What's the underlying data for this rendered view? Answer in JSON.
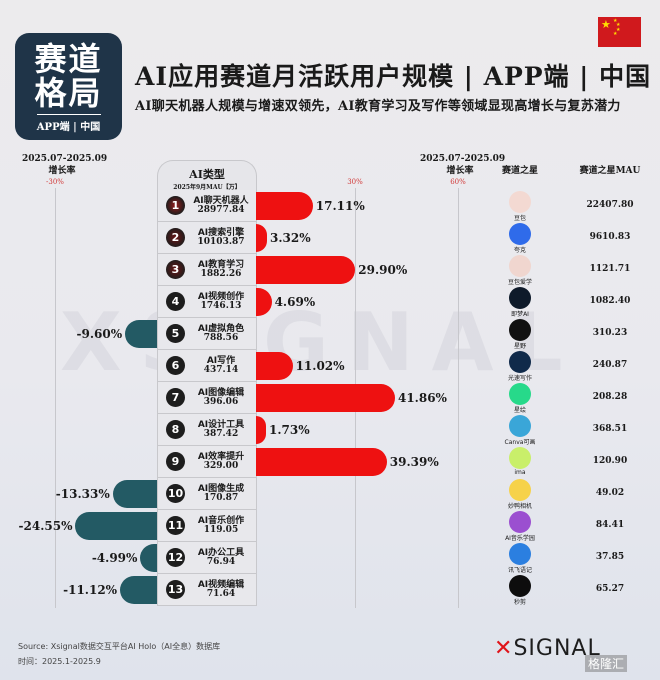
{
  "logo": {
    "line1": "赛道",
    "line2": "格局",
    "sub": "APP端 | 中国"
  },
  "title": "AI应用赛道月活跃用户规模 | APP端 | 中国",
  "subtitle": "AI聊天机器人规模与增速双领先，AI教育学习及写作等领域显现高增长与复苏潜力",
  "headers": {
    "left_period": "2025.07-2025.09",
    "left_growth": "增长率",
    "right_period": "2025.07-2025.09",
    "right_growth": "增长率",
    "star": "赛道之星",
    "star_mau": "赛道之星MAU",
    "table_title": "AI类型",
    "table_sub": "2025年9月MAU【万】"
  },
  "ticks": {
    "neg30": "-30%",
    "pos30": "30%",
    "pos60": "60%"
  },
  "colors": {
    "positive": "#ee1111",
    "negative": "#235a64",
    "logo_bg": "#1f3448"
  },
  "chart_data": {
    "type": "bar",
    "orientation": "horizontal-diverging",
    "title": "AI应用赛道月活跃用户规模 | APP端 | 中国",
    "xlabel": "2025.07-2025.09 增长率",
    "xlim": [
      -30,
      60
    ],
    "grid": true,
    "categories": [
      "AI聊天机器人",
      "AI搜索引擎",
      "AI教育学习",
      "AI视频创作",
      "AI虚拟角色",
      "AI写作",
      "AI图像编辑",
      "AI设计工具",
      "AI效率提升",
      "AI图像生成",
      "AI音乐创作",
      "AI办公工具",
      "AI视频编辑"
    ],
    "series": [
      {
        "name": "2025年9月MAU【万】",
        "values": [
          28977.84,
          10103.87,
          1882.26,
          1746.13,
          788.56,
          437.14,
          396.06,
          387.42,
          329.0,
          170.87,
          119.05,
          76.94,
          71.64
        ]
      },
      {
        "name": "增长率(%)",
        "values": [
          17.11,
          3.32,
          29.9,
          4.69,
          -9.6,
          11.02,
          41.86,
          1.73,
          39.39,
          -13.33,
          -24.55,
          -4.99,
          -11.12
        ]
      },
      {
        "name": "赛道之星MAU",
        "values": [
          22407.8,
          9610.83,
          1121.71,
          1082.4,
          310.23,
          240.87,
          208.28,
          368.51,
          120.9,
          49.02,
          84.41,
          37.85,
          65.27
        ]
      }
    ]
  },
  "rows": [
    {
      "rank": "1",
      "name": "AI聊天机器人",
      "mau": "28977.84",
      "growth": 17.11,
      "growth_label": "17.11%",
      "star": "豆包",
      "star_mau": "22407.80",
      "icon_color": "#f3d9d2"
    },
    {
      "rank": "2",
      "name": "AI搜索引擎",
      "mau": "10103.87",
      "growth": 3.32,
      "growth_label": "3.32%",
      "star": "夸克",
      "star_mau": "9610.83",
      "icon_color": "#2f6bea"
    },
    {
      "rank": "3",
      "name": "AI教育学习",
      "mau": "1882.26",
      "growth": 29.9,
      "growth_label": "29.90%",
      "star": "豆包爱学",
      "star_mau": "1121.71",
      "icon_color": "#f0d6cf"
    },
    {
      "rank": "4",
      "name": "AI视频创作",
      "mau": "1746.13",
      "growth": 4.69,
      "growth_label": "4.69%",
      "star": "即梦AI",
      "star_mau": "1082.40",
      "icon_color": "#0e1a2a"
    },
    {
      "rank": "5",
      "name": "AI虚拟角色",
      "mau": "788.56",
      "growth": -9.6,
      "growth_label": "-9.60%",
      "star": "星野",
      "star_mau": "310.23",
      "icon_color": "#111111"
    },
    {
      "rank": "6",
      "name": "AI写作",
      "mau": "437.14",
      "growth": 11.02,
      "growth_label": "11.02%",
      "star": "光速写作",
      "star_mau": "240.87",
      "icon_color": "#102a4a"
    },
    {
      "rank": "7",
      "name": "AI图像编辑",
      "mau": "396.06",
      "growth": 41.86,
      "growth_label": "41.86%",
      "star": "星绘",
      "star_mau": "208.28",
      "icon_color": "#27d98a"
    },
    {
      "rank": "8",
      "name": "AI设计工具",
      "mau": "387.42",
      "growth": 1.73,
      "growth_label": "1.73%",
      "star": "Canva可画",
      "star_mau": "368.51",
      "icon_color": "#3aa6d8"
    },
    {
      "rank": "9",
      "name": "AI效率提升",
      "mau": "329.00",
      "growth": 39.39,
      "growth_label": "39.39%",
      "star": "ima",
      "star_mau": "120.90",
      "icon_color": "#c9ef6a"
    },
    {
      "rank": "10",
      "name": "AI图像生成",
      "mau": "170.87",
      "growth": -13.33,
      "growth_label": "-13.33%",
      "star": "妙鸭相机",
      "star_mau": "49.02",
      "icon_color": "#f6d24a"
    },
    {
      "rank": "11",
      "name": "AI音乐创作",
      "mau": "119.05",
      "growth": -24.55,
      "growth_label": "-24.55%",
      "star": "AI音乐学园",
      "star_mau": "84.41",
      "icon_color": "#9b4fd0"
    },
    {
      "rank": "12",
      "name": "AI办公工具",
      "mau": "76.94",
      "growth": -4.99,
      "growth_label": "-4.99%",
      "star": "讯飞语记",
      "star_mau": "37.85",
      "icon_color": "#2b7fe0"
    },
    {
      "rank": "13",
      "name": "AI视频编辑",
      "mau": "71.64",
      "growth": -11.12,
      "growth_label": "-11.12%",
      "star": "秒剪",
      "star_mau": "65.27",
      "icon_color": "#0d0d0d"
    }
  ],
  "footer": {
    "source": "Source:  Xsignal数据交互平台AI Holo（AI全息）数据库",
    "time": "时间：2025.1-2025.9"
  },
  "brand": {
    "x": "✕",
    "name": "SIGNAL"
  },
  "watermark": {
    "bg": "XSIGNAL",
    "corner": "格隆汇"
  }
}
